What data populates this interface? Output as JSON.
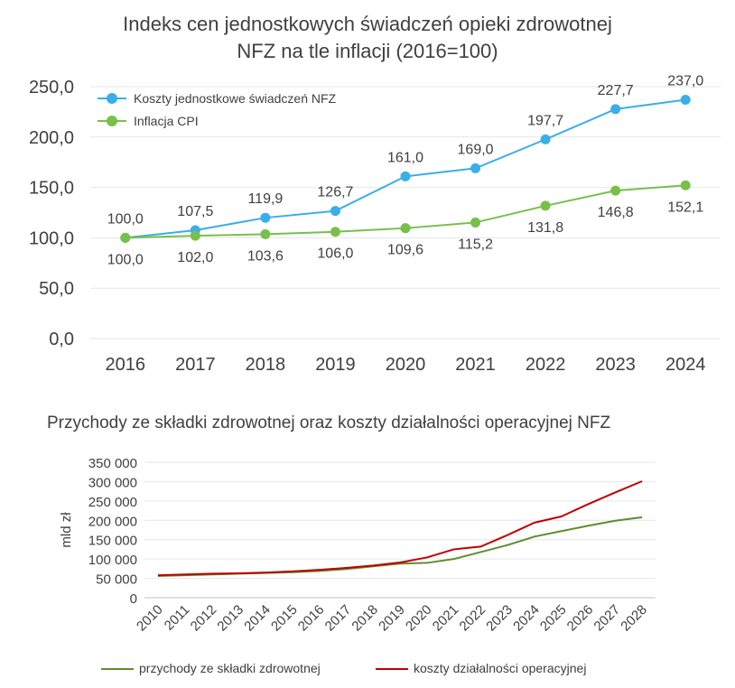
{
  "colors": {
    "blue": "#3aaee8",
    "green": "#78c04a",
    "dkgreen": "#5b8f2e",
    "red": "#c00000",
    "grid": "#e6e6e6",
    "text": "#404040"
  },
  "chart_data": [
    {
      "type": "line",
      "title": "Indeks cen jednostkowych świadczeń opieki zdrowotnej",
      "title_line2_main": "NFZ na tle inflacji",
      "title_line2_suffix": "(2016=100)",
      "categories": [
        "2016",
        "2017",
        "2018",
        "2019",
        "2020",
        "2021",
        "2022",
        "2023",
        "2024"
      ],
      "ylim": [
        0,
        250
      ],
      "yticks": [
        "0,0",
        "50,0",
        "100,0",
        "150,0",
        "200,0",
        "250,0"
      ],
      "ytick_values": [
        0,
        50,
        100,
        150,
        200,
        250
      ],
      "grid": true,
      "legend_position": "top-left",
      "series": [
        {
          "name": "Koszty jednostkowe świadczeń NFZ",
          "color": "#3aaee8",
          "values": [
            100.0,
            107.5,
            119.9,
            126.7,
            161.0,
            169.0,
            197.7,
            227.7,
            237.0
          ],
          "labels": [
            "100,0",
            "107,5",
            "119,9",
            "126,7",
            "161,0",
            "169,0",
            "197,7",
            "227,7",
            "237,0"
          ]
        },
        {
          "name": "Inflacja CPI",
          "color": "#78c04a",
          "values": [
            100.0,
            102.0,
            103.6,
            106.0,
            109.6,
            115.2,
            131.8,
            146.8,
            152.1
          ],
          "labels": [
            "100,0",
            "102,0",
            "103,6",
            "106,0",
            "109,6",
            "115,2",
            "131,8",
            "146,8",
            "152,1"
          ]
        }
      ]
    },
    {
      "type": "line",
      "title": "Przychody ze składki zdrowotnej oraz koszty działalności operacyjnej NFZ",
      "ylabel": "mld zł",
      "categories": [
        "2010",
        "2011",
        "2012",
        "2013",
        "2014",
        "2015",
        "2016",
        "2017",
        "2018",
        "2019",
        "2020",
        "2021",
        "2022",
        "2023",
        "2024",
        "2025",
        "2026",
        "2027",
        "2028"
      ],
      "ylim": [
        0,
        350000
      ],
      "yticks": [
        "0",
        "50 000",
        "100 000",
        "150 000",
        "200 000",
        "250 000",
        "300 000",
        "350 000"
      ],
      "ytick_values": [
        0,
        50000,
        100000,
        150000,
        200000,
        250000,
        300000,
        350000
      ],
      "grid": true,
      "legend_position": "bottom",
      "series": [
        {
          "name": "przychody ze składki zdrowotnej",
          "color": "#5b8f2e",
          "values": [
            56000,
            58000,
            60000,
            62000,
            64000,
            66000,
            69000,
            74000,
            81000,
            88000,
            90000,
            100000,
            118000,
            136000,
            158000,
            172000,
            186000,
            199000,
            208000
          ]
        },
        {
          "name": "koszty działalności operacyjnej",
          "color": "#c00000",
          "values": [
            58000,
            60000,
            62000,
            63000,
            65000,
            68000,
            72000,
            77000,
            83000,
            91000,
            104000,
            125000,
            132000,
            162000,
            194000,
            210000,
            242000,
            272000,
            301000
          ]
        }
      ]
    }
  ]
}
